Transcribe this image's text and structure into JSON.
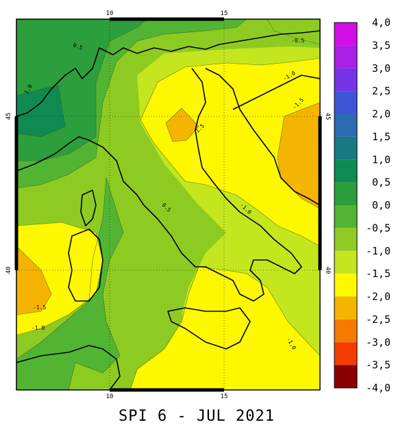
{
  "title": "SPI 6 - JUL 2021",
  "axes": {
    "x_ticks": [
      "10",
      "15"
    ],
    "y_ticks": [
      "45",
      "40"
    ]
  },
  "legend": {
    "levels": [
      {
        "label": "4,0",
        "color": "#d10fe6"
      },
      {
        "label": "3,5",
        "color": "#a81fe6"
      },
      {
        "label": "3,0",
        "color": "#7733e6"
      },
      {
        "label": "2,5",
        "color": "#3d55d6"
      },
      {
        "label": "2,0",
        "color": "#2a6ab0"
      },
      {
        "label": "1,5",
        "color": "#177a82"
      },
      {
        "label": "1,0",
        "color": "#0e8a52"
      },
      {
        "label": "0,5",
        "color": "#2d9e3c"
      },
      {
        "label": "0,0",
        "color": "#52b433"
      },
      {
        "label": "-0,5",
        "color": "#8ecb22"
      },
      {
        "label": "-1,0",
        "color": "#c4e61e"
      },
      {
        "label": "-1,5",
        "color": "#fdf700"
      },
      {
        "label": "-2,0",
        "color": "#f5b400"
      },
      {
        "label": "-2,5",
        "color": "#f57a00"
      },
      {
        "label": "-3,0",
        "color": "#f53c00"
      },
      {
        "label": "-3,5",
        "color": "#e00000"
      },
      {
        "label": "-4,0",
        "color": "#8a0000"
      }
    ]
  },
  "contour_labels": [
    "0.5",
    "1.0",
    "-0.5",
    "-1.0",
    "-1.5"
  ]
}
